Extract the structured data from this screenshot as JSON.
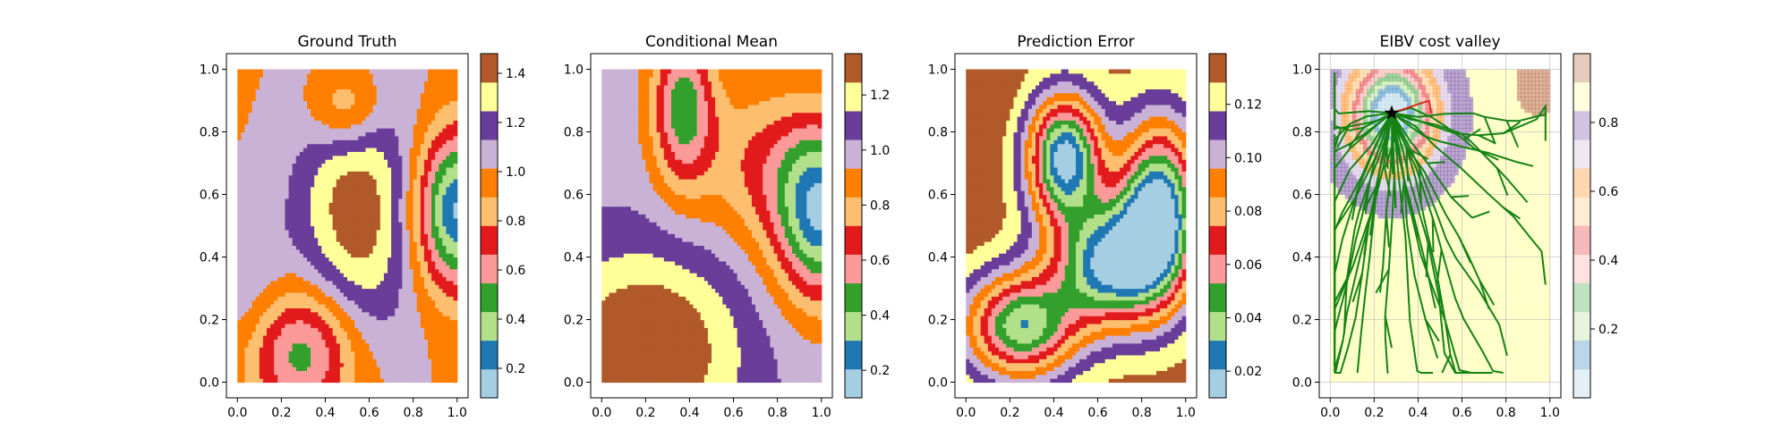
{
  "chart_data": [
    {
      "type": "heatmap",
      "title": "Ground Truth",
      "xlim": [
        0,
        1
      ],
      "ylim": [
        0,
        1
      ],
      "x_ticks": [
        "0.0",
        "0.2",
        "0.4",
        "0.6",
        "0.8",
        "1.0"
      ],
      "y_ticks": [
        "0.0",
        "0.2",
        "0.4",
        "0.6",
        "0.8",
        "1.0"
      ],
      "colorbar": {
        "colormap": "Paired",
        "range": [
          0.08,
          1.48
        ],
        "ticks": [
          "0.2",
          "0.4",
          "0.6",
          "0.8",
          "1.0",
          "1.2",
          "1.4"
        ]
      }
    },
    {
      "type": "heatmap",
      "title": "Conditional Mean",
      "xlim": [
        0,
        1
      ],
      "ylim": [
        0,
        1
      ],
      "x_ticks": [
        "0.0",
        "0.2",
        "0.4",
        "0.6",
        "0.8",
        "1.0"
      ],
      "y_ticks": [
        "0.0",
        "0.2",
        "0.4",
        "0.6",
        "0.8",
        "1.0"
      ],
      "colorbar": {
        "colormap": "Paired",
        "range": [
          0.1,
          1.35
        ],
        "ticks": [
          "0.2",
          "0.4",
          "0.6",
          "0.8",
          "1.0",
          "1.2"
        ]
      }
    },
    {
      "type": "heatmap",
      "title": "Prediction Error",
      "xlim": [
        0,
        1
      ],
      "ylim": [
        0,
        1
      ],
      "x_ticks": [
        "0.0",
        "0.2",
        "0.4",
        "0.6",
        "0.8",
        "1.0"
      ],
      "y_ticks": [
        "0.0",
        "0.2",
        "0.4",
        "0.6",
        "0.8",
        "1.0"
      ],
      "colorbar": {
        "colormap": "Paired",
        "range": [
          0.01,
          0.139
        ],
        "ticks": [
          "0.02",
          "0.04",
          "0.06",
          "0.08",
          "0.10",
          "0.12"
        ]
      }
    },
    {
      "type": "heatmap",
      "title": "EIBV cost valley",
      "xlim": [
        0,
        1
      ],
      "ylim": [
        0,
        1
      ],
      "x_ticks": [
        "0.0",
        "0.2",
        "0.4",
        "0.6",
        "0.8",
        "1.0"
      ],
      "y_ticks": [
        "0.0",
        "0.2",
        "0.4",
        "0.6",
        "0.8",
        "1.0"
      ],
      "grid": true,
      "current_location": [
        0.28,
        0.86
      ],
      "colorbar": {
        "colormap": "Paired (light)",
        "range": [
          0.0,
          1.0
        ],
        "ticks": [
          "0.2",
          "0.4",
          "0.6",
          "0.8"
        ]
      }
    }
  ],
  "colors": {
    "paired": [
      "#a6cee3",
      "#1f78b4",
      "#b2df8a",
      "#33a02c",
      "#fb9a99",
      "#e31a1c",
      "#fdbf6f",
      "#ff7f00",
      "#cab2d6",
      "#6a3d9a",
      "#ffff99",
      "#b15928"
    ],
    "path": "#148214",
    "highlight": "#e31a1c",
    "marker": "#000000"
  }
}
